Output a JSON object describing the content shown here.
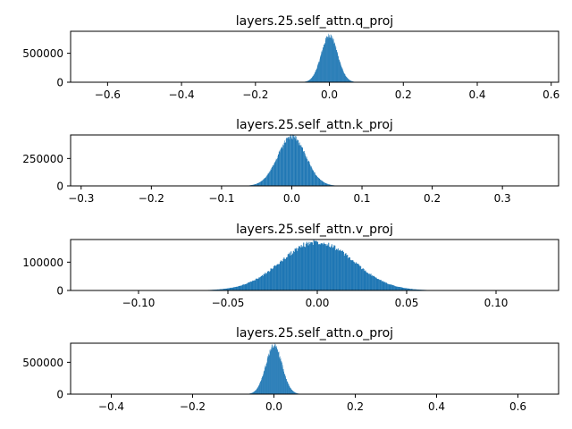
{
  "chart_data": [
    {
      "type": "histogram",
      "title": "layers.25.self_attn.q_proj",
      "xlim": [
        -0.7,
        0.62
      ],
      "ylim": [
        0,
        880000
      ],
      "xticks": [
        -0.6,
        -0.4,
        -0.2,
        0.0,
        0.2,
        0.4,
        0.6
      ],
      "xtick_labels": [
        "−0.6",
        "−0.4",
        "−0.2",
        "0.0",
        "0.2",
        "0.4",
        "0.6"
      ],
      "yticks": [
        0,
        500000
      ],
      "ytick_labels": [
        "0",
        "500000"
      ],
      "center": 0.0,
      "sigma": 0.022,
      "peak": 810000,
      "support": [
        -0.12,
        0.12
      ],
      "color": "#1f77b4"
    },
    {
      "type": "histogram",
      "title": "layers.25.self_attn.k_proj",
      "xlim": [
        -0.315,
        0.38
      ],
      "ylim": [
        0,
        465000
      ],
      "xticks": [
        -0.3,
        -0.2,
        -0.1,
        0.0,
        0.1,
        0.2,
        0.3
      ],
      "xtick_labels": [
        "−0.3",
        "−0.2",
        "−0.1",
        "0.0",
        "0.1",
        "0.2",
        "0.3"
      ],
      "yticks": [
        0,
        250000
      ],
      "ytick_labels": [
        "0",
        "250000"
      ],
      "center": 0.0,
      "sigma": 0.02,
      "peak": 450000,
      "support": [
        -0.09,
        0.09
      ],
      "color": "#1f77b4"
    },
    {
      "type": "histogram",
      "title": "layers.25.self_attn.v_proj",
      "xlim": [
        -0.138,
        0.135
      ],
      "ylim": [
        0,
        180000
      ],
      "xticks": [
        -0.1,
        -0.05,
        0.0,
        0.05,
        0.1
      ],
      "xtick_labels": [
        "−0.10",
        "−0.05",
        "0.00",
        "0.05",
        "0.10"
      ],
      "yticks": [
        0,
        100000
      ],
      "ytick_labels": [
        "0",
        "100000"
      ],
      "center": 0.0,
      "sigma": 0.02,
      "peak": 172000,
      "support": [
        -0.07,
        0.07
      ],
      "color": "#1f77b4"
    },
    {
      "type": "histogram",
      "title": "layers.25.self_attn.o_proj",
      "xlim": [
        -0.5,
        0.7
      ],
      "ylim": [
        0,
        800000
      ],
      "xticks": [
        -0.4,
        -0.2,
        0.0,
        0.2,
        0.4,
        0.6
      ],
      "xtick_labels": [
        "−0.4",
        "−0.2",
        "0.0",
        "0.2",
        "0.4",
        "0.6"
      ],
      "yticks": [
        0,
        500000
      ],
      "ytick_labels": [
        "0",
        "500000"
      ],
      "center": 0.0,
      "sigma": 0.02,
      "peak": 760000,
      "support": [
        -0.1,
        0.1
      ],
      "color": "#1f77b4"
    }
  ]
}
